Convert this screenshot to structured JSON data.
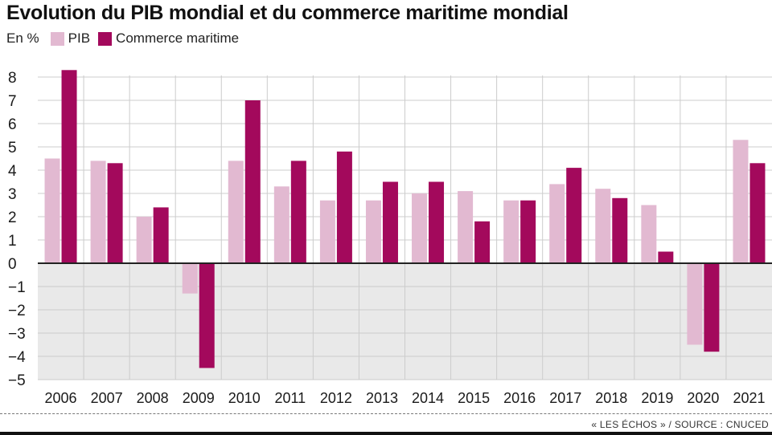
{
  "chart_data": {
    "type": "bar",
    "title": "Evolution du PIB mondial et du commerce maritime mondial",
    "unit_label": "En %",
    "xlabel": "",
    "ylabel": "En %",
    "ylim": [
      -5,
      8
    ],
    "yticks": [
      8,
      7,
      6,
      5,
      4,
      3,
      2,
      1,
      0,
      -1,
      -2,
      -3,
      -4,
      -5
    ],
    "grid": true,
    "legend_position": "top-left",
    "categories": [
      "2006",
      "2007",
      "2008",
      "2009",
      "2010",
      "2011",
      "2012",
      "2013",
      "2014",
      "2015",
      "2016",
      "2017",
      "2018",
      "2019",
      "2020",
      "2021"
    ],
    "series": [
      {
        "name": "PIB",
        "color": "#e2b9d1",
        "values": [
          4.5,
          4.4,
          2.0,
          -1.3,
          4.4,
          3.3,
          2.7,
          2.7,
          3.0,
          3.1,
          2.7,
          3.4,
          3.2,
          2.5,
          -3.5,
          5.3
        ]
      },
      {
        "name": "Commerce maritime",
        "color": "#a3095c",
        "values": [
          8.3,
          4.3,
          2.4,
          -4.5,
          7.0,
          4.4,
          4.8,
          3.5,
          3.5,
          1.8,
          2.7,
          4.1,
          2.8,
          0.5,
          -3.8,
          4.3
        ]
      }
    ]
  },
  "colors": {
    "negative_band": "#e9e9e9",
    "grid_line": "#cccccc",
    "text": "#1a1a1a"
  },
  "source": "« LES ÉCHOS » / SOURCE : CNUCED"
}
